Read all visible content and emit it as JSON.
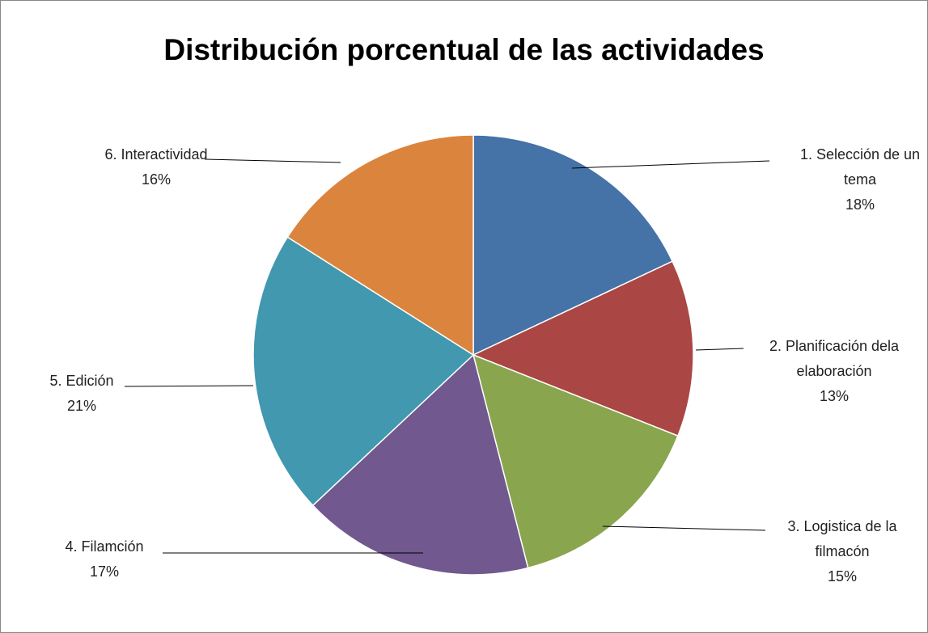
{
  "chart_data": {
    "type": "pie",
    "title": "Distribución porcentual de las actividades",
    "categories": [
      "1. Selección de un tema",
      "2. Planificación dela elaboración",
      "3. Logistica de la filmacón",
      "4. Filamción",
      "5. Edición",
      "6. Interactividad"
    ],
    "values": [
      18,
      13,
      15,
      17,
      21,
      16
    ],
    "value_labels": [
      "18%",
      "13%",
      "15%",
      "17%",
      "21%",
      "16%"
    ],
    "colors": [
      "#4572a7",
      "#aa4643",
      "#89a54e",
      "#71588f",
      "#4198af",
      "#db843d"
    ]
  }
}
